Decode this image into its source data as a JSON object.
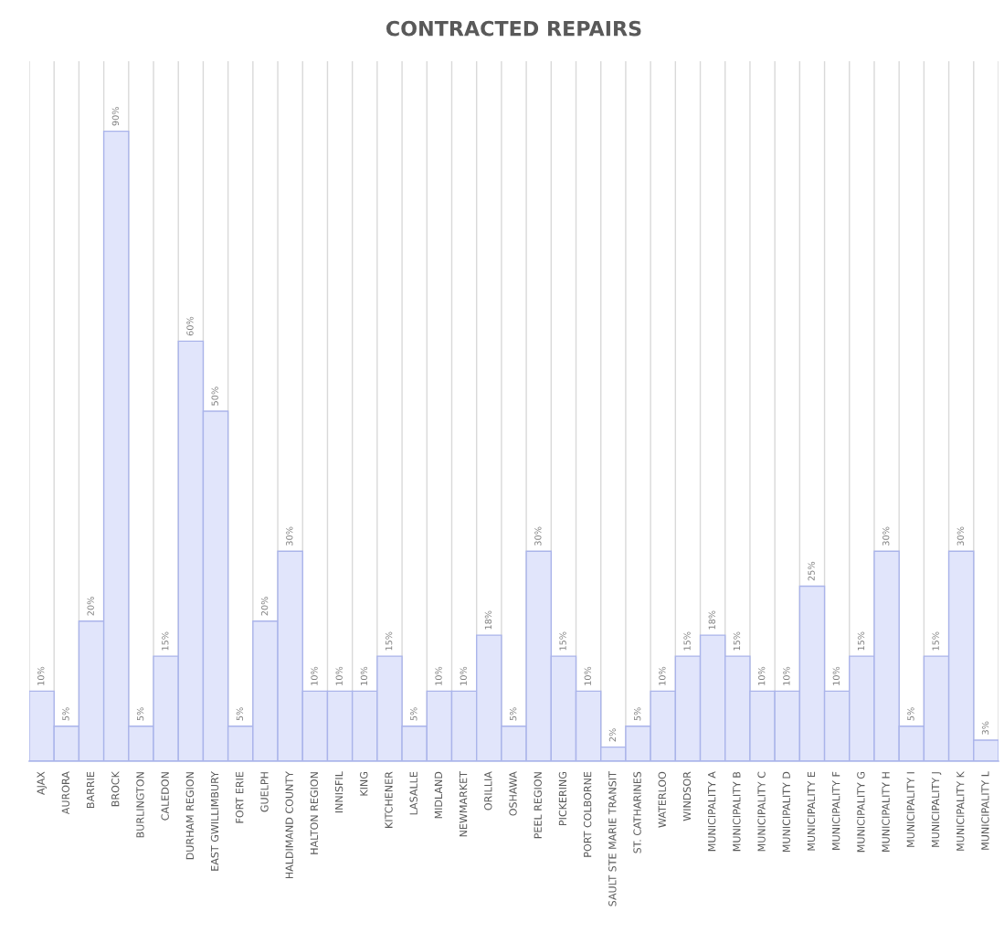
{
  "chart_data": {
    "type": "bar",
    "title": "CONTRACTED REPAIRS",
    "categories": [
      "AJAX",
      "AURORA",
      "BARRIE",
      "BROCK",
      "BURLINGTON",
      "CALEDON",
      "DURHAM REGION",
      "EAST GWILLIMBURY",
      "FORT ERIE",
      "GUELPH",
      "HALDIMAND COUNTY",
      "HALTON REGION",
      "INNISFIL",
      "KING",
      "KITCHENER",
      "LASALLE",
      "MIDLAND",
      "NEWMARKET",
      "ORILLIA",
      "OSHAWA",
      "PEEL REGION",
      "PICKERING",
      "PORT COLBORNE",
      "SAULT STE MARIE TRANSIT",
      "ST. CATHARINES",
      "WATERLOO",
      "WINDSOR",
      "MUNICIPALITY A",
      "MUNICIPALITY B",
      "MUNICIPALITY C",
      "MUNICIPALITY D",
      "MUNICIPALITY E",
      "MUNICIPALITY F",
      "MUNICIPALITY G",
      "MUNICIPALITY H",
      "MUNICIPALITY I",
      "MUNICIPALITY J",
      "MUNICIPALITY K",
      "MUNICIPALITY L"
    ],
    "values": [
      10,
      5,
      20,
      90,
      5,
      15,
      60,
      50,
      5,
      20,
      30,
      10,
      10,
      10,
      15,
      5,
      10,
      10,
      18,
      5,
      30,
      15,
      10,
      2,
      5,
      10,
      15,
      18,
      15,
      10,
      10,
      25,
      10,
      15,
      30,
      5,
      15,
      30,
      3
    ],
    "value_labels": [
      "10%",
      "5%",
      "20%",
      "90%",
      "5%",
      "15%",
      "60%",
      "50%",
      "5%",
      "20%",
      "30%",
      "10%",
      "10%",
      "10%",
      "15%",
      "5%",
      "10%",
      "10%",
      "18%",
      "5%",
      "30%",
      "15%",
      "10%",
      "2%",
      "5%",
      "10%",
      "15%",
      "18%",
      "15%",
      "10%",
      "10%",
      "25%",
      "10%",
      "15%",
      "30%",
      "5%",
      "15%",
      "30%",
      "3%"
    ],
    "color": "#e1e5fb",
    "ylim": [
      0,
      100
    ],
    "tick_labels": "x",
    "grid": "x"
  }
}
